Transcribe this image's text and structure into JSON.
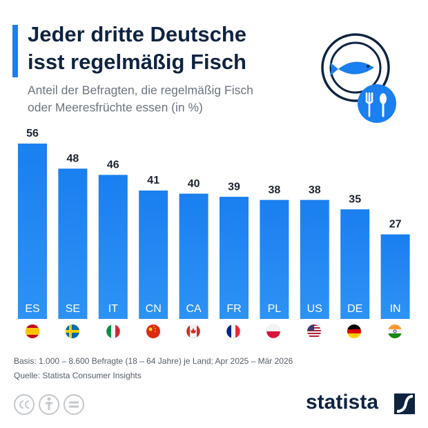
{
  "chart_data": {
    "type": "bar",
    "title": [
      "Jeder dritte Deutsche",
      "isst regelmäßig Fisch"
    ],
    "subtitle": [
      "Anteil der Befragten, die regelmäßig Fisch",
      "oder Meeresfrüchte essen (in %)"
    ],
    "categories": [
      "ES",
      "SE",
      "IT",
      "CN",
      "CA",
      "FR",
      "PL",
      "US",
      "DE",
      "IN"
    ],
    "values": [
      56,
      48,
      46,
      41,
      40,
      39,
      38,
      38,
      35,
      27
    ],
    "color": "#1a7ff0",
    "notes": [
      "Basis: 1.000 – 8.600 Befragte (18 – 64 Jahre) je Land; Apr 2025 – Mär 2026",
      "Quelle: Statista Consumer Insights"
    ],
    "brand": "statista"
  }
}
